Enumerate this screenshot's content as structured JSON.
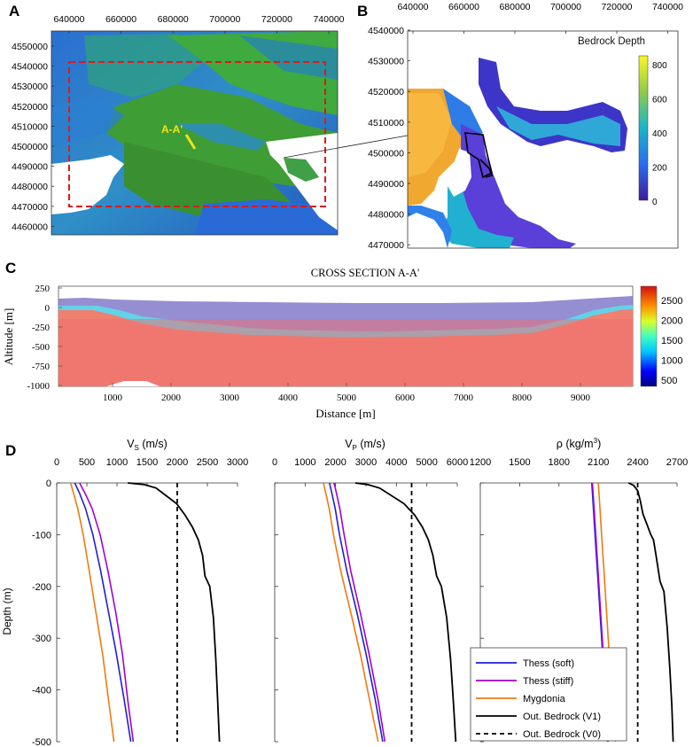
{
  "figure": {
    "panel_labels": [
      "A",
      "B",
      "C",
      "D"
    ],
    "colors": {
      "thess_soft": "#1f1fd1",
      "thess_stiff": "#a100d6",
      "mygdonia": "#f07a10",
      "bedrock": "#000000",
      "red_box": "#e01818",
      "trace": "#f1e21a"
    }
  },
  "panel_a": {
    "x_ticks": [
      "640000",
      "660000",
      "680000",
      "700000",
      "720000",
      "740000"
    ],
    "y_ticks": [
      "4550000",
      "4540000",
      "4530000",
      "4520000",
      "4510000",
      "4500000",
      "4490000",
      "4480000",
      "4470000",
      "4460000"
    ],
    "section_label": "A-A'"
  },
  "panel_b": {
    "x_ticks": [
      "640000",
      "660000",
      "680000",
      "700000",
      "720000",
      "740000"
    ],
    "y_ticks": [
      "4540000",
      "4530000",
      "4520000",
      "4510000",
      "4500000",
      "4490000",
      "4480000",
      "4470000"
    ],
    "colorbar_title": "Bedrock Depth",
    "colorbar_ticks": [
      "800",
      "600",
      "400",
      "200",
      "0"
    ]
  },
  "panel_c": {
    "title": "CROSS SECTION A-A'",
    "ylabel": "Altitude [m]",
    "xlabel": "Distance [m]",
    "y_ticks": [
      "250",
      "0",
      "-250",
      "-500",
      "-750",
      "-1000"
    ],
    "x_ticks": [
      "1000",
      "2000",
      "3000",
      "4000",
      "5000",
      "6000",
      "7000",
      "8000",
      "9000"
    ],
    "colorbar_ticks": [
      "2500",
      "2000",
      "1500",
      "1000",
      "500"
    ]
  },
  "chart_data": [
    {
      "type": "line",
      "title": "Vs (m/s)",
      "title_main": "V",
      "title_sub": "S",
      "title_unit": " (m/s)",
      "ylabel": "Depth (m)",
      "xlim": [
        0,
        3000
      ],
      "ylim": [
        -500,
        0
      ],
      "x_ticks": [
        "0",
        "500",
        "1000",
        "1500",
        "2000",
        "2500",
        "3000"
      ],
      "y_ticks": [
        "0",
        "-100",
        "-200",
        "-300",
        "-400",
        "-500"
      ],
      "series": [
        {
          "name": "Thess (soft)",
          "key": "thess_soft",
          "dash": false,
          "x": [
            300,
            380,
            480,
            600,
            730,
            860,
            990,
            1120,
            1230
          ],
          "y": [
            0,
            -20,
            -50,
            -100,
            -170,
            -250,
            -330,
            -420,
            -500
          ]
        },
        {
          "name": "Thess (stiff)",
          "key": "thess_stiff",
          "dash": false,
          "x": [
            380,
            470,
            590,
            720,
            850,
            980,
            1090,
            1180,
            1270
          ],
          "y": [
            0,
            -20,
            -50,
            -100,
            -170,
            -250,
            -330,
            -420,
            -500
          ]
        },
        {
          "name": "Mygdonia",
          "key": "mygdonia",
          "dash": false,
          "x": [
            230,
            280,
            350,
            440,
            540,
            650,
            760,
            860,
            950
          ],
          "y": [
            0,
            -20,
            -50,
            -100,
            -170,
            -250,
            -330,
            -420,
            -500
          ]
        },
        {
          "name": "Out. Bedrock (V1)",
          "key": "bedrock",
          "dash": false,
          "x": [
            1180,
            1450,
            1650,
            1820,
            1990,
            2130,
            2250,
            2350,
            2420,
            2460,
            2540,
            2600,
            2640,
            2670,
            2700
          ],
          "y": [
            0,
            -3,
            -10,
            -25,
            -40,
            -62,
            -85,
            -110,
            -140,
            -180,
            -200,
            -260,
            -340,
            -420,
            -500
          ]
        },
        {
          "name": "Out. Bedrock (V0)",
          "key": "bedrock",
          "dash": true,
          "x": [
            2000,
            2000
          ],
          "y": [
            0,
            -500
          ]
        }
      ]
    },
    {
      "type": "line",
      "title": "Vp (m/s)",
      "title_main": "V",
      "title_sub": "P",
      "title_unit": " (m/s)",
      "ylabel": "",
      "xlim": [
        0,
        6000
      ],
      "ylim": [
        -500,
        0
      ],
      "x_ticks": [
        "0",
        "1000",
        "2000",
        "3000",
        "4000",
        "5000",
        "6000"
      ],
      "y_ticks": [],
      "series": [
        {
          "name": "Thess (soft)",
          "key": "thess_soft",
          "dash": false,
          "x": [
            1800,
            1880,
            1990,
            2130,
            2370,
            2700,
            3000,
            3310,
            3550
          ],
          "y": [
            0,
            -20,
            -50,
            -100,
            -170,
            -250,
            -330,
            -420,
            -500
          ]
        },
        {
          "name": "Thess (stiff)",
          "key": "thess_stiff",
          "dash": false,
          "x": [
            1950,
            2030,
            2140,
            2280,
            2500,
            2810,
            3100,
            3400,
            3620
          ],
          "y": [
            0,
            -20,
            -50,
            -100,
            -170,
            -250,
            -330,
            -420,
            -500
          ]
        },
        {
          "name": "Mygdonia",
          "key": "mygdonia",
          "dash": false,
          "x": [
            1600,
            1680,
            1790,
            1930,
            2170,
            2500,
            2810,
            3120,
            3400
          ],
          "y": [
            0,
            -20,
            -50,
            -100,
            -170,
            -250,
            -330,
            -420,
            -500
          ]
        },
        {
          "name": "Out. Bedrock (V1)",
          "key": "bedrock",
          "dash": false,
          "x": [
            2650,
            3050,
            3450,
            3850,
            4250,
            4600,
            4850,
            5050,
            5200,
            5320,
            5480,
            5650,
            5780,
            5870,
            5950
          ],
          "y": [
            0,
            -3,
            -10,
            -25,
            -40,
            -62,
            -85,
            -110,
            -140,
            -180,
            -200,
            -260,
            -340,
            -420,
            -500
          ]
        },
        {
          "name": "Out. Bedrock (V0)",
          "key": "bedrock",
          "dash": true,
          "x": [
            4500,
            4500
          ],
          "y": [
            0,
            -500
          ]
        }
      ]
    },
    {
      "type": "line",
      "title": "ρ (kg/m³)",
      "title_main": "ρ (kg/m",
      "title_sup": "3",
      "title_unit": ")",
      "ylabel": "",
      "xlim": [
        1200,
        2700
      ],
      "ylim": [
        -500,
        0
      ],
      "x_ticks": [
        "1200",
        "1500",
        "1800",
        "2100",
        "2400",
        "2700"
      ],
      "y_ticks": [],
      "series": [
        {
          "name": "Thess (soft)",
          "key": "thess_soft",
          "dash": false,
          "x": [
            2050,
            2065,
            2080,
            2095,
            2110,
            2125,
            2140,
            2155,
            2170
          ],
          "y": [
            0,
            -60,
            -120,
            -180,
            -240,
            -300,
            -360,
            -430,
            -500
          ]
        },
        {
          "name": "Thess (stiff)",
          "key": "thess_stiff",
          "dash": false,
          "x": [
            2055,
            2070,
            2085,
            2100,
            2115,
            2130,
            2145,
            2160,
            2175
          ],
          "y": [
            0,
            -60,
            -120,
            -180,
            -240,
            -300,
            -360,
            -430,
            -500
          ]
        },
        {
          "name": "Mygdonia",
          "key": "mygdonia",
          "dash": false,
          "x": [
            2100,
            2115,
            2130,
            2145,
            2160,
            2175,
            2190,
            2210,
            2230
          ],
          "y": [
            0,
            -60,
            -120,
            -180,
            -240,
            -300,
            -360,
            -430,
            -500
          ]
        },
        {
          "name": "Out. Bedrock (V1)",
          "key": "bedrock",
          "dash": false,
          "x": [
            2330,
            2370,
            2400,
            2420,
            2440,
            2470,
            2500,
            2520,
            2540,
            2570,
            2600,
            2625,
            2645,
            2660,
            2670
          ],
          "y": [
            0,
            -5,
            -15,
            -35,
            -60,
            -80,
            -100,
            -110,
            -140,
            -190,
            -210,
            -280,
            -360,
            -430,
            -500
          ]
        },
        {
          "name": "Out. Bedrock (V0)",
          "key": "bedrock",
          "dash": true,
          "x": [
            2400,
            2400
          ],
          "y": [
            0,
            -500
          ]
        }
      ]
    }
  ],
  "legend": {
    "items": [
      {
        "label": "Thess (soft)",
        "key": "thess_soft",
        "dash": false
      },
      {
        "label": "Thess (stiff)",
        "key": "thess_stiff",
        "dash": false
      },
      {
        "label": "Mygdonia",
        "key": "mygdonia",
        "dash": false
      },
      {
        "label": "Out. Bedrock (V1)",
        "key": "bedrock",
        "dash": false
      },
      {
        "label": "Out. Bedrock (V0)",
        "key": "bedrock",
        "dash": true
      }
    ]
  }
}
